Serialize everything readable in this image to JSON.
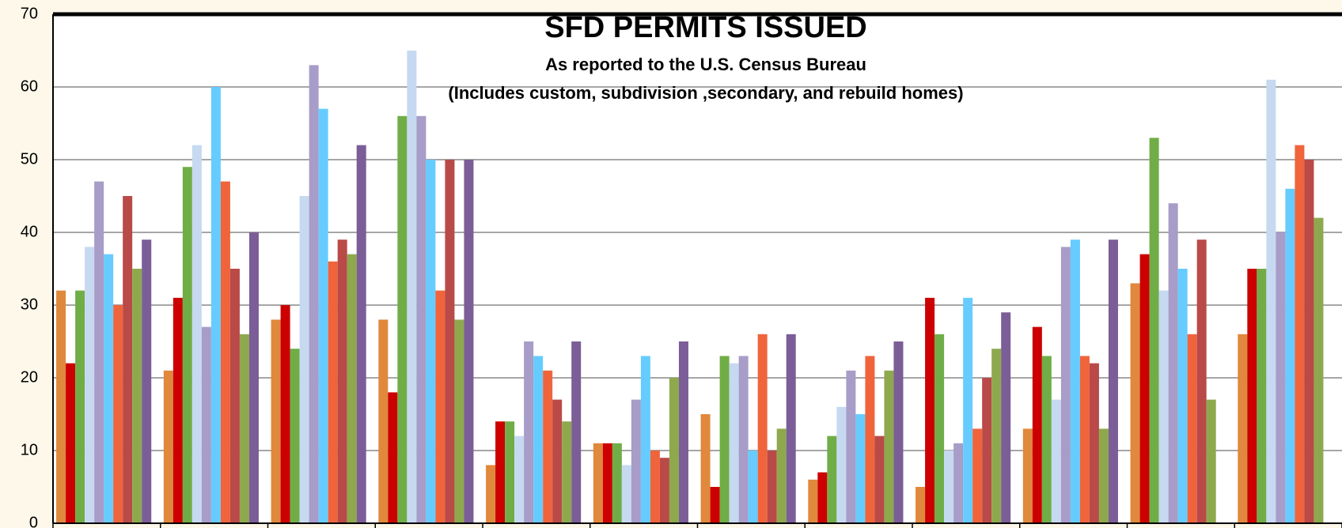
{
  "chart_data": {
    "type": "bar",
    "title": "SFD PERMITS ISSUED",
    "subtitle": [
      "As reported to the U.S. Census Bureau",
      "(Includes custom, subdivision ,secondary, and rebuild homes)"
    ],
    "categories": [
      null,
      null,
      null,
      null,
      null,
      null,
      null,
      null,
      null,
      null,
      null,
      null
    ],
    "series": [
      {
        "color": "#e0883c",
        "values": [
          32,
          21,
          28,
          28,
          8,
          11,
          15,
          6,
          5,
          13,
          33,
          26
        ]
      },
      {
        "color": "#cc0000",
        "values": [
          22,
          31,
          30,
          18,
          14,
          11,
          5,
          7,
          31,
          27,
          37,
          35
        ]
      },
      {
        "color": "#70ad47",
        "values": [
          32,
          49,
          24,
          56,
          14,
          11,
          23,
          12,
          26,
          23,
          53,
          35
        ]
      },
      {
        "color": "#c6d9f1",
        "values": [
          38,
          52,
          45,
          65,
          12,
          8,
          22,
          16,
          10,
          17,
          32,
          61
        ]
      },
      {
        "color": "#a89cc8",
        "values": [
          47,
          27,
          63,
          56,
          25,
          17,
          23,
          21,
          11,
          38,
          44,
          40
        ]
      },
      {
        "color": "#66ccff",
        "values": [
          37,
          60,
          57,
          50,
          23,
          23,
          10,
          15,
          31,
          39,
          35,
          46
        ]
      },
      {
        "color": "#f0643c",
        "values": [
          30,
          47,
          36,
          32,
          21,
          10,
          26,
          23,
          13,
          23,
          26,
          52
        ]
      },
      {
        "color": "#b94a48",
        "values": [
          45,
          35,
          39,
          50,
          17,
          9,
          10,
          12,
          20,
          22,
          39,
          50
        ]
      },
      {
        "color": "#8ea94d",
        "values": [
          35,
          26,
          37,
          28,
          14,
          20,
          13,
          21,
          24,
          13,
          17,
          42
        ]
      },
      {
        "color": "#7b5e97",
        "values": [
          39,
          40,
          52,
          50,
          25,
          25,
          26,
          25,
          29,
          39,
          null,
          null
        ]
      }
    ],
    "ylim": [
      0,
      70
    ],
    "yticks": [
      0,
      10,
      20,
      30,
      40,
      50,
      60,
      70
    ],
    "grid": true
  }
}
